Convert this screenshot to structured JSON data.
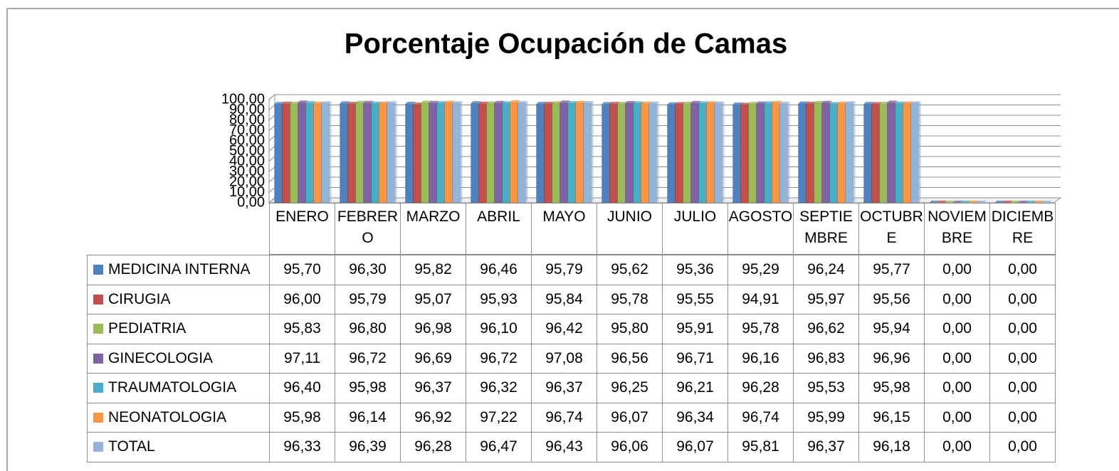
{
  "chart_data": {
    "type": "bar",
    "title": "Porcentaje Ocupación de Camas",
    "categories": [
      "ENERO",
      "FEBRERO",
      "MARZO",
      "ABRIL",
      "MAYO",
      "JUNIO",
      "JULIO",
      "AGOSTO",
      "SEPTIEMBRE",
      "OCTUBRE",
      "NOVIEMBRE",
      "DICIEMBRE"
    ],
    "ylim": [
      0,
      100
    ],
    "yticks": [
      {
        "value": 0,
        "label": "0,00"
      },
      {
        "value": 10,
        "label": "10,00"
      },
      {
        "value": 20,
        "label": "20,00"
      },
      {
        "value": 30,
        "label": "30,00"
      },
      {
        "value": 40,
        "label": "40,00"
      },
      {
        "value": 50,
        "label": "50,00"
      },
      {
        "value": 60,
        "label": "60,00"
      },
      {
        "value": 70,
        "label": "70,00"
      },
      {
        "value": 80,
        "label": "80,00"
      },
      {
        "value": 90,
        "label": "90,00"
      },
      {
        "value": 100,
        "label": "100,00"
      }
    ],
    "grid": true,
    "series": [
      {
        "name": "MEDICINA INTERNA",
        "color": "#4f81bd",
        "values": [
          95.7,
          96.3,
          95.82,
          96.46,
          95.79,
          95.62,
          95.36,
          95.29,
          96.24,
          95.77,
          0,
          0
        ],
        "value_labels": [
          "95,70",
          "96,30",
          "95,82",
          "96,46",
          "95,79",
          "95,62",
          "95,36",
          "95,29",
          "96,24",
          "95,77",
          "0,00",
          "0,00"
        ]
      },
      {
        "name": "CIRUGIA",
        "color": "#c0504d",
        "values": [
          96.0,
          95.79,
          95.07,
          95.93,
          95.84,
          95.78,
          95.55,
          94.91,
          95.97,
          95.56,
          0,
          0
        ],
        "value_labels": [
          "96,00",
          "95,79",
          "95,07",
          "95,93",
          "95,84",
          "95,78",
          "95,55",
          "94,91",
          "95,97",
          "95,56",
          "0,00",
          "0,00"
        ]
      },
      {
        "name": "PEDIATRIA",
        "color": "#9bbb59",
        "values": [
          95.83,
          96.8,
          96.98,
          96.1,
          96.42,
          95.8,
          95.91,
          95.78,
          96.62,
          95.94,
          0,
          0
        ],
        "value_labels": [
          "95,83",
          "96,80",
          "96,98",
          "96,10",
          "96,42",
          "95,80",
          "95,91",
          "95,78",
          "96,62",
          "95,94",
          "0,00",
          "0,00"
        ]
      },
      {
        "name": "GINECOLOGIA",
        "color": "#8064a2",
        "values": [
          97.11,
          96.72,
          96.69,
          96.72,
          97.08,
          96.56,
          96.71,
          96.16,
          96.83,
          96.96,
          0,
          0
        ],
        "value_labels": [
          "97,11",
          "96,72",
          "96,69",
          "96,72",
          "97,08",
          "96,56",
          "96,71",
          "96,16",
          "96,83",
          "96,96",
          "0,00",
          "0,00"
        ]
      },
      {
        "name": "TRAUMATOLOGIA",
        "color": "#4bacc6",
        "values": [
          96.4,
          95.98,
          96.37,
          96.32,
          96.37,
          96.25,
          96.21,
          96.28,
          95.53,
          95.98,
          0,
          0
        ],
        "value_labels": [
          "96,40",
          "95,98",
          "96,37",
          "96,32",
          "96,37",
          "96,25",
          "96,21",
          "96,28",
          "95,53",
          "95,98",
          "0,00",
          "0,00"
        ]
      },
      {
        "name": "NEONATOLOGIA",
        "color": "#f79646",
        "values": [
          95.98,
          96.14,
          96.92,
          97.22,
          96.74,
          96.07,
          96.34,
          96.74,
          95.99,
          96.15,
          0,
          0
        ],
        "value_labels": [
          "95,98",
          "96,14",
          "96,92",
          "97,22",
          "96,74",
          "96,07",
          "96,34",
          "96,74",
          "95,99",
          "96,15",
          "0,00",
          "0,00"
        ]
      },
      {
        "name": "TOTAL",
        "color": "#95b3d7",
        "values": [
          96.33,
          96.39,
          96.28,
          96.47,
          96.43,
          96.06,
          96.07,
          95.81,
          96.37,
          96.18,
          0,
          0
        ],
        "value_labels": [
          "96,33",
          "96,39",
          "96,28",
          "96,47",
          "96,43",
          "96,06",
          "96,07",
          "95,81",
          "96,37",
          "96,18",
          "0,00",
          "0,00"
        ]
      }
    ]
  }
}
